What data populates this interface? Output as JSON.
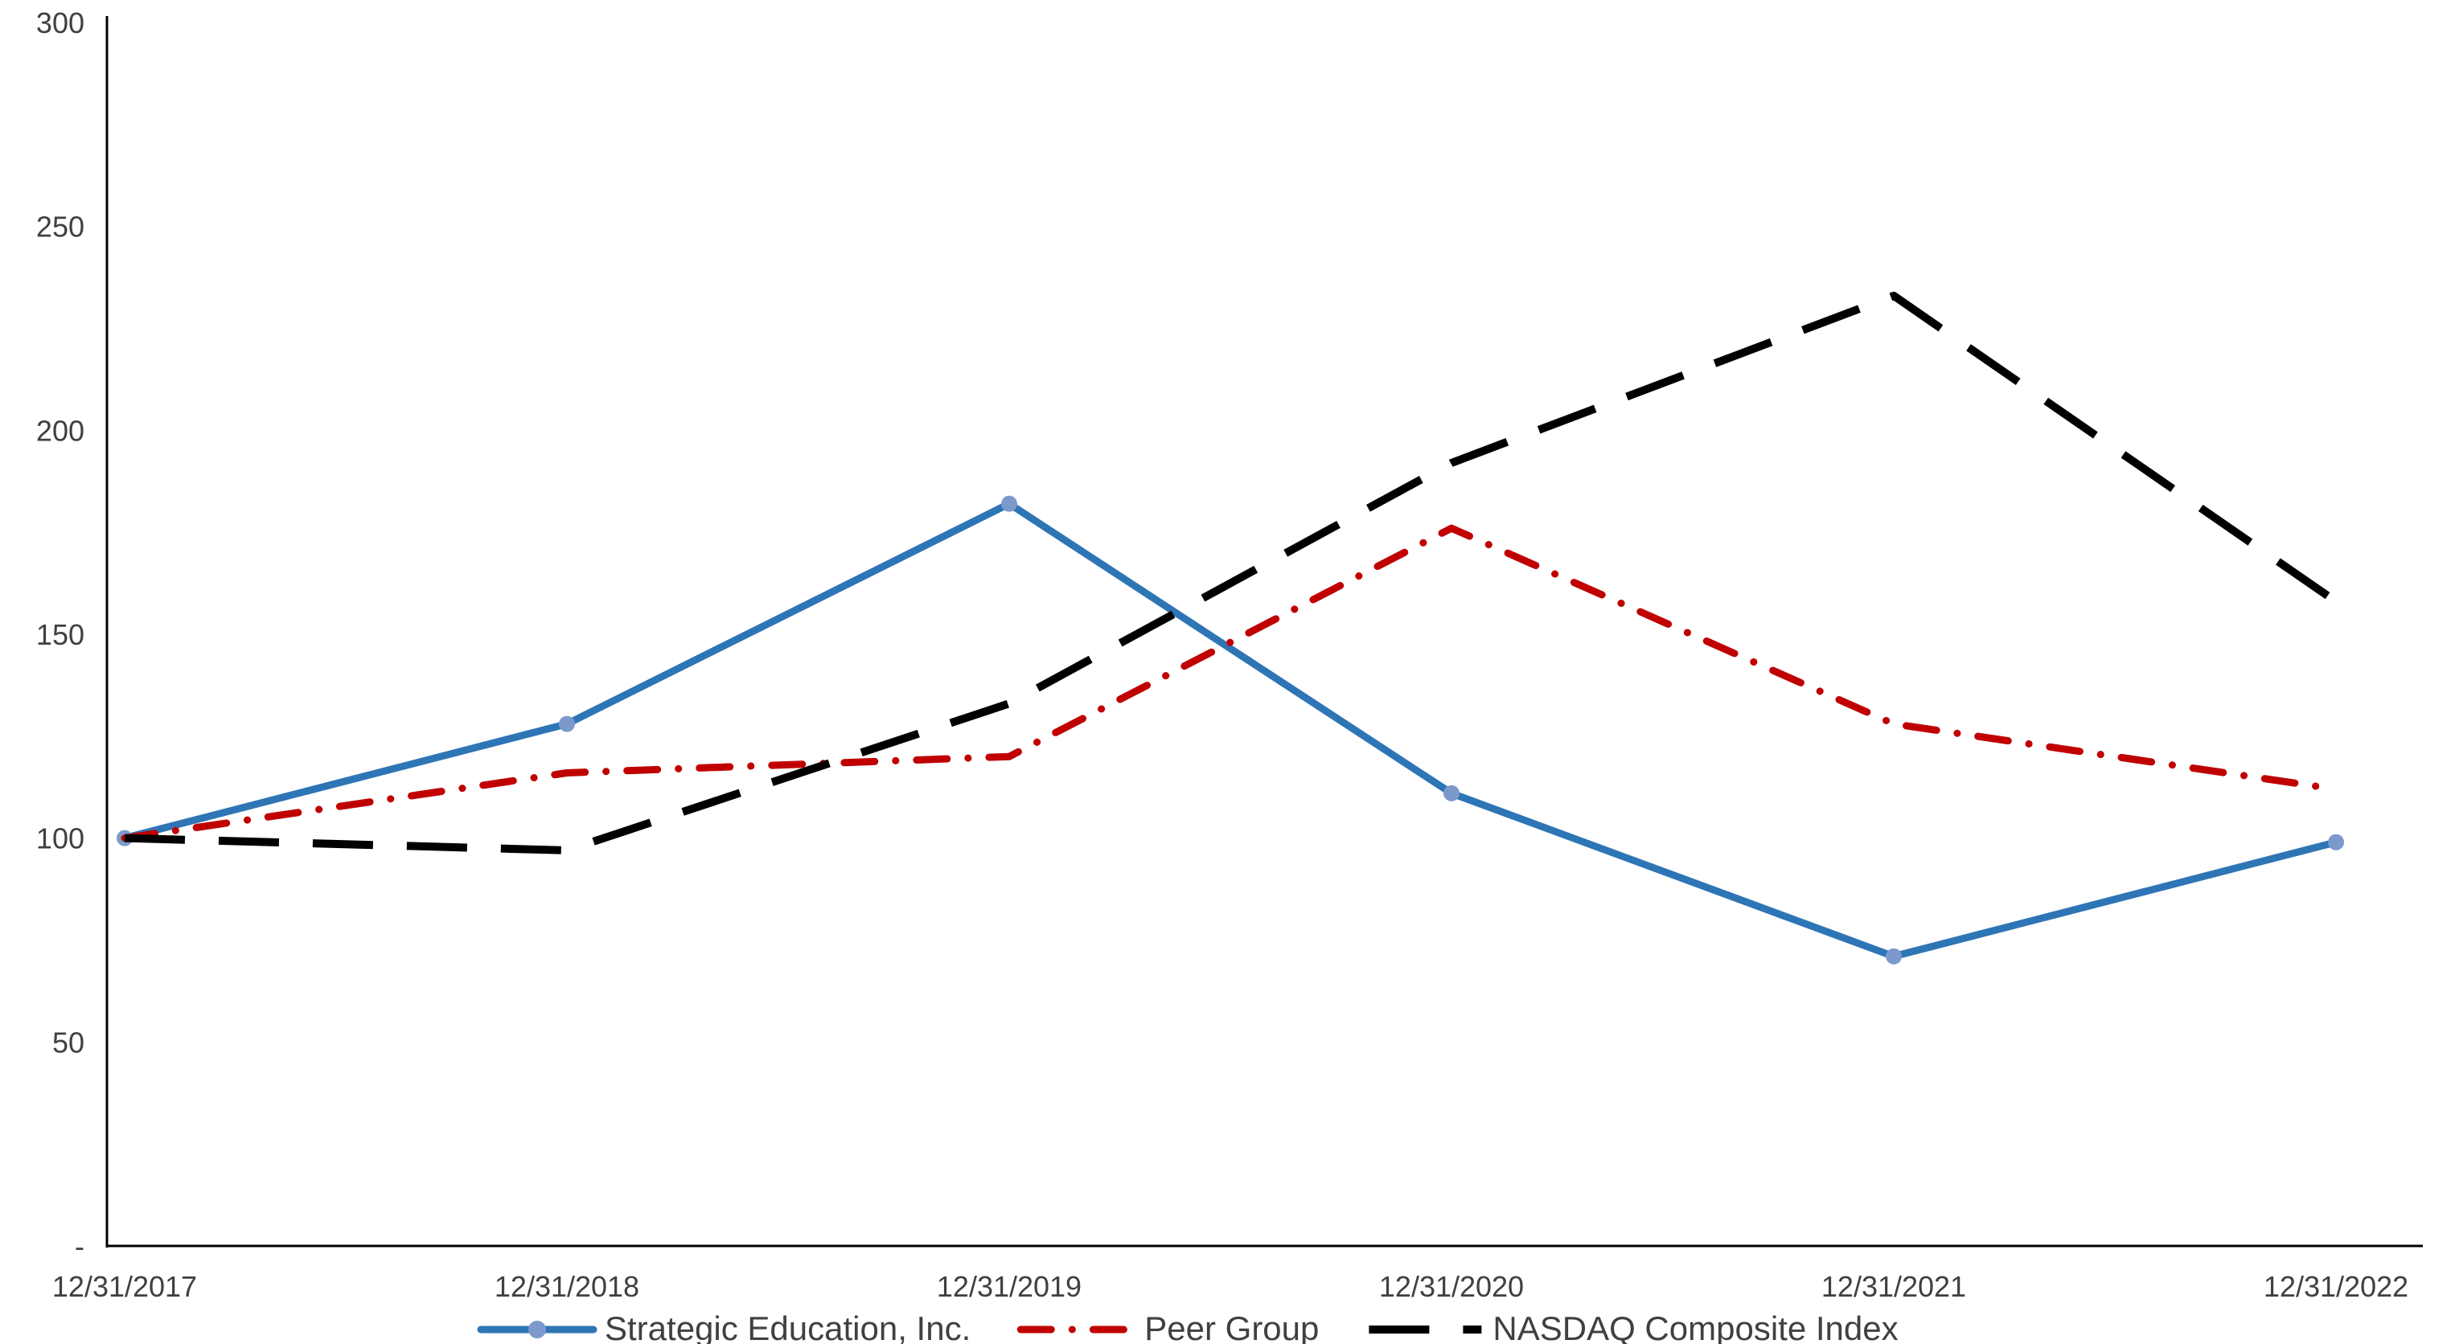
{
  "chart_data": {
    "type": "line",
    "title": "",
    "xlabel": "",
    "ylabel": "",
    "grid": false,
    "legend_position": "bottom",
    "categories": [
      "12/31/2017",
      "12/31/2018",
      "12/31/2019",
      "12/31/2020",
      "12/31/2021",
      "12/31/2022"
    ],
    "series": [
      {
        "name": "Strategic Education, Inc.",
        "values": [
          100,
          128,
          182,
          111,
          71,
          99
        ],
        "color": "#2E75B6",
        "marker_color": "#7C99CC",
        "style": "solid",
        "marker": true
      },
      {
        "name": "Peer Group",
        "values": [
          100,
          116,
          120,
          176,
          128,
          112
        ],
        "color": "#C00000",
        "marker_color": "",
        "style": "dashdot",
        "marker": false
      },
      {
        "name": "NASDAQ Composite Index",
        "values": [
          100,
          97,
          133,
          192,
          233,
          158
        ],
        "color": "#000000",
        "marker_color": "",
        "style": "dash",
        "marker": false
      }
    ],
    "ylim": [
      0,
      300
    ],
    "yticks": [
      0,
      50,
      100,
      150,
      200,
      250,
      300
    ],
    "ytick_labels": [
      "-",
      "50",
      "100",
      "150",
      "200",
      "250",
      "300"
    ],
    "axis_color": "#000000"
  }
}
